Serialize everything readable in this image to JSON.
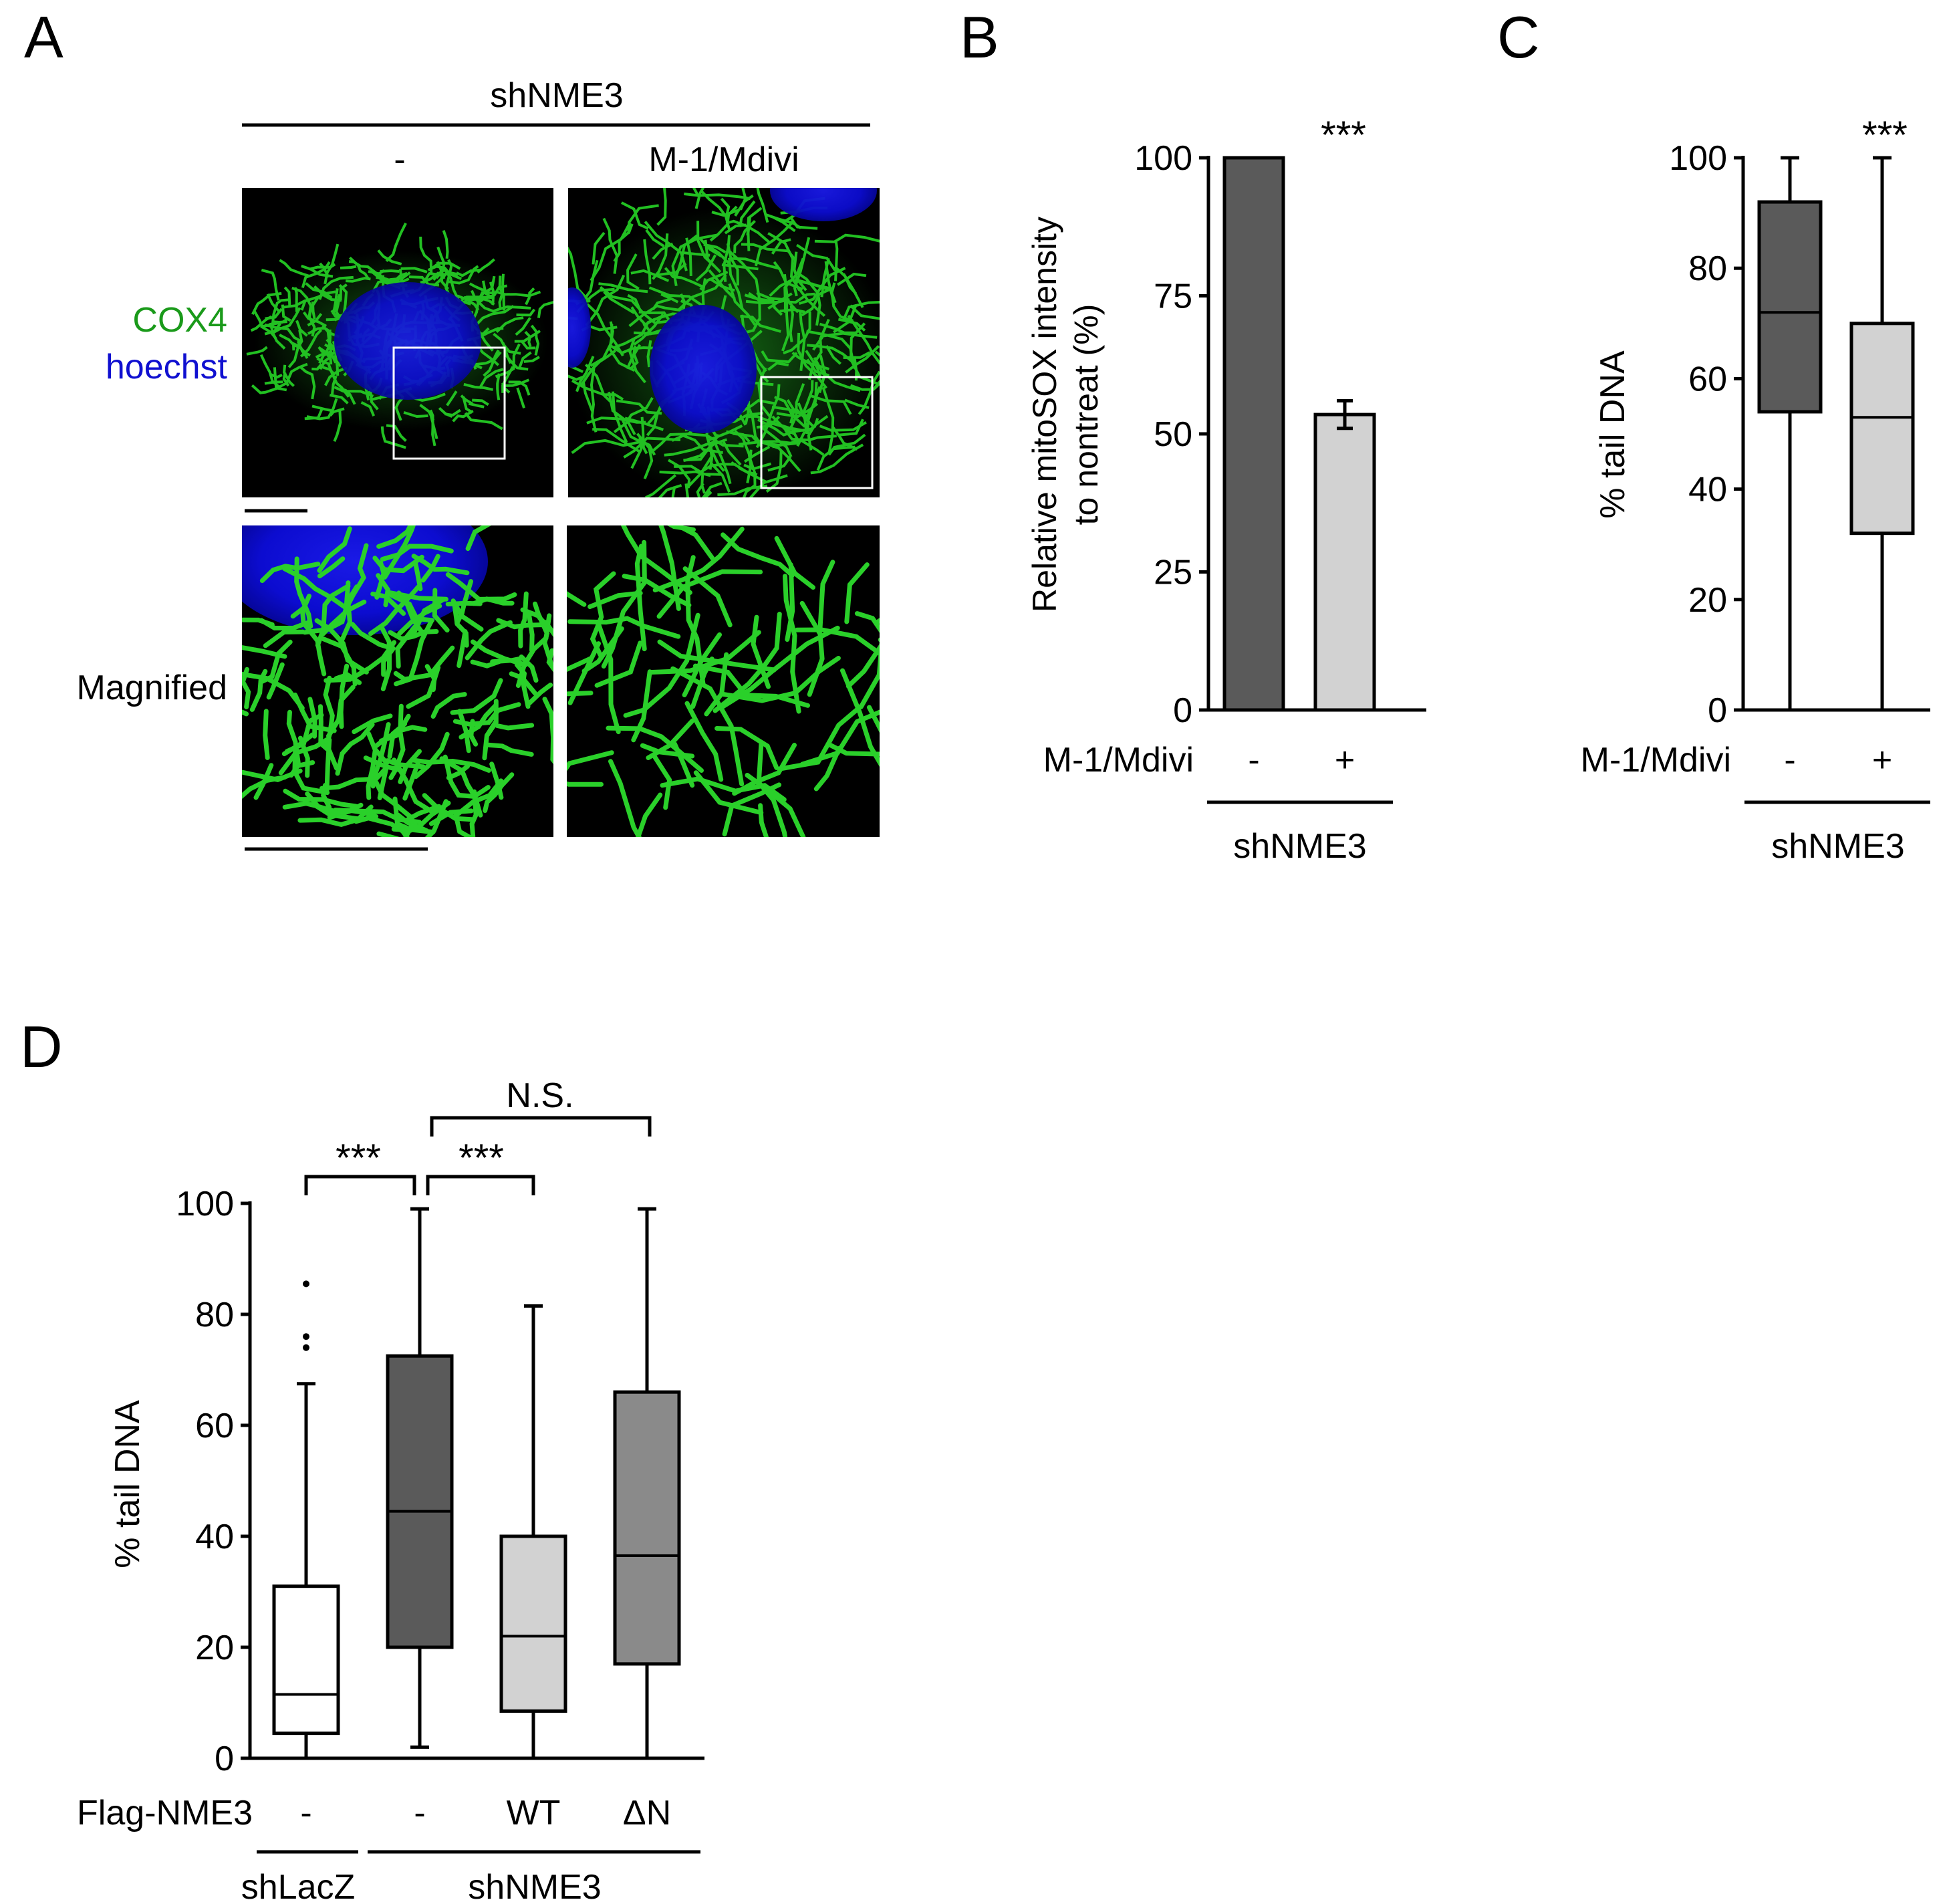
{
  "panel_a": {
    "letter": "A",
    "group_label": "shNME3",
    "col_labels": [
      "-",
      "M-1/Mdivi"
    ],
    "stain_green": "COX4",
    "stain_blue": "hoechst",
    "row_label": "Magnified",
    "colors": {
      "green": "#1db01d",
      "blue": "#0a0ad8",
      "background": "#000000"
    }
  },
  "panel_b": {
    "letter": "B",
    "ylabel_line1": "Relative mitoSOX intensity",
    "ylabel_line2": "to nontreat (%)",
    "yticks": [
      "0",
      "25",
      "50",
      "75",
      "100"
    ],
    "row_label": "M-1/Mdivi",
    "xticks": [
      "-",
      "+"
    ],
    "group_label": "shNME3",
    "sig": "***"
  },
  "panel_c": {
    "letter": "C",
    "ylabel": "% tail DNA",
    "yticks": [
      "0",
      "20",
      "40",
      "60",
      "80",
      "100"
    ],
    "row_label": "M-1/Mdivi",
    "xticks": [
      "-",
      "+"
    ],
    "group_label": "shNME3",
    "sig": "***"
  },
  "panel_d": {
    "letter": "D",
    "ylabel": "% tail DNA",
    "yticks": [
      "0",
      "20",
      "40",
      "60",
      "80",
      "100"
    ],
    "row_label": "Flag-NME3",
    "xticks": [
      "-",
      "-",
      "WT",
      "ΔN"
    ],
    "group_labels": [
      "shLacZ",
      "shNME3"
    ],
    "sig_labels": [
      "***",
      "***",
      "N.S."
    ]
  },
  "chart_data": [
    {
      "panel": "B",
      "type": "bar",
      "categories": [
        "-",
        "+"
      ],
      "values": [
        100,
        53.5
      ],
      "errors": [
        0,
        2.5
      ],
      "colors": [
        "#5a5a5a",
        "#d2d2d2"
      ],
      "ylabel": "Relative mitoSOX intensity to nontreat (%)",
      "ylim": [
        0,
        100
      ]
    },
    {
      "panel": "C",
      "type": "box",
      "categories": [
        "-",
        "+"
      ],
      "boxes": [
        {
          "min": 0,
          "q1": 54,
          "median": 72,
          "q3": 92,
          "max": 100,
          "color": "#5a5a5a"
        },
        {
          "min": 0,
          "q1": 32,
          "median": 53,
          "q3": 70,
          "max": 100,
          "color": "#d2d2d2"
        }
      ],
      "ylabel": "% tail DNA",
      "ylim": [
        0,
        100
      ]
    },
    {
      "panel": "D",
      "type": "box",
      "categories": [
        "-",
        "-",
        "WT",
        "ΔN"
      ],
      "boxes": [
        {
          "min": 0,
          "q1": 4.5,
          "median": 11.5,
          "q3": 31,
          "max": 67.5,
          "outliers": [
            74,
            76,
            85.5
          ],
          "color": "#ffffff"
        },
        {
          "min": 2,
          "q1": 20,
          "median": 44.5,
          "q3": 72.5,
          "max": 99,
          "outliers": [],
          "color": "#5a5a5a"
        },
        {
          "min": 0,
          "q1": 8.5,
          "median": 22,
          "q3": 40,
          "max": 81.5,
          "outliers": [],
          "color": "#d2d2d2"
        },
        {
          "min": 0,
          "q1": 17,
          "median": 36.5,
          "q3": 66,
          "max": 99,
          "outliers": [],
          "color": "#8a8a8a"
        }
      ],
      "ylabel": "% tail DNA",
      "ylim": [
        0,
        100
      ]
    }
  ]
}
